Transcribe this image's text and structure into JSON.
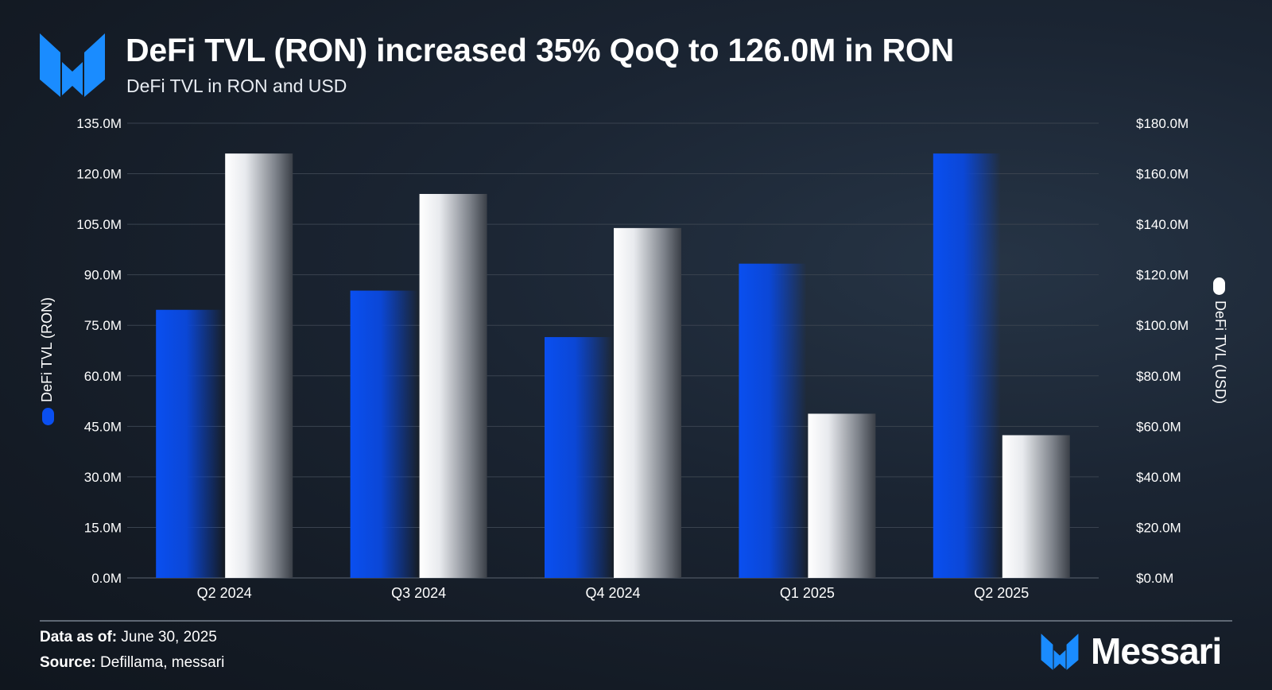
{
  "header": {
    "logo_icon": "messari-logo-icon",
    "title": "DeFi TVL (RON) increased 35% QoQ to 126.0M in RON",
    "subtitle": "DeFi TVL in RON and USD"
  },
  "colors": {
    "ron_series": "#0a4ff0",
    "usd_series": "#ffffff",
    "gridline": "#3a434f",
    "axis_text": "#ffffff",
    "brand": "#1a8cff"
  },
  "chart_data": {
    "type": "bar",
    "categories": [
      "Q2 2024",
      "Q3 2024",
      "Q4 2024",
      "Q1 2025",
      "Q2 2025"
    ],
    "series": [
      {
        "name": "DeFi TVL (RON)",
        "axis": "left",
        "values": [
          79.6,
          85.3,
          71.5,
          93.3,
          126.0
        ],
        "legend_icon": "blue-pill-icon"
      },
      {
        "name": "DeFi TVL (USD)",
        "axis": "right",
        "values": [
          168.0,
          152.0,
          138.5,
          65.0,
          56.5
        ],
        "legend_icon": "white-pill-icon"
      }
    ],
    "left_axis": {
      "label": "DeFi TVL (RON)",
      "ylim": [
        0,
        135
      ],
      "ticks": [
        "0.0M",
        "15.0M",
        "30.0M",
        "45.0M",
        "60.0M",
        "75.0M",
        "90.0M",
        "105.0M",
        "120.0M",
        "135.0M"
      ]
    },
    "right_axis": {
      "label": "DeFi TVL (USD)",
      "ylim": [
        0,
        180
      ],
      "ticks": [
        "$0.0M",
        "$20.0M",
        "$40.0M",
        "$60.0M",
        "$80.0M",
        "$100.0M",
        "$120.0M",
        "$140.0M",
        "$160.0M",
        "$180.0M"
      ]
    },
    "grid": true,
    "legend_placement": "vertical axis labels"
  },
  "footer": {
    "data_as_of_label": "Data as of:",
    "data_as_of_value": " June 30, 2025",
    "source_label": "Source:",
    "source_value": " Defillama, messari",
    "brand_name": "Messari",
    "brand_icon": "messari-logo-icon"
  }
}
